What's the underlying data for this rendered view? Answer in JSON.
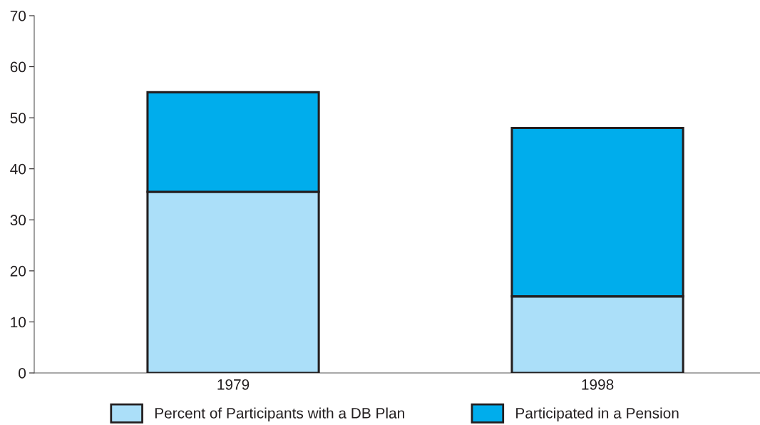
{
  "chart_data": {
    "type": "bar",
    "stacked": true,
    "categories": [
      "1979",
      "1998"
    ],
    "series": [
      {
        "name": "Percent of Participants with a DB Plan",
        "color": "#abdff9",
        "values": [
          35.5,
          15
        ]
      },
      {
        "name": "Participated in a Pension",
        "color": "#00adec",
        "values": [
          19.5,
          33
        ]
      }
    ],
    "ylim": [
      0,
      70
    ],
    "yticks": [
      0,
      10,
      20,
      30,
      40,
      50,
      60,
      70
    ],
    "grid": false,
    "legend": "bottom"
  }
}
